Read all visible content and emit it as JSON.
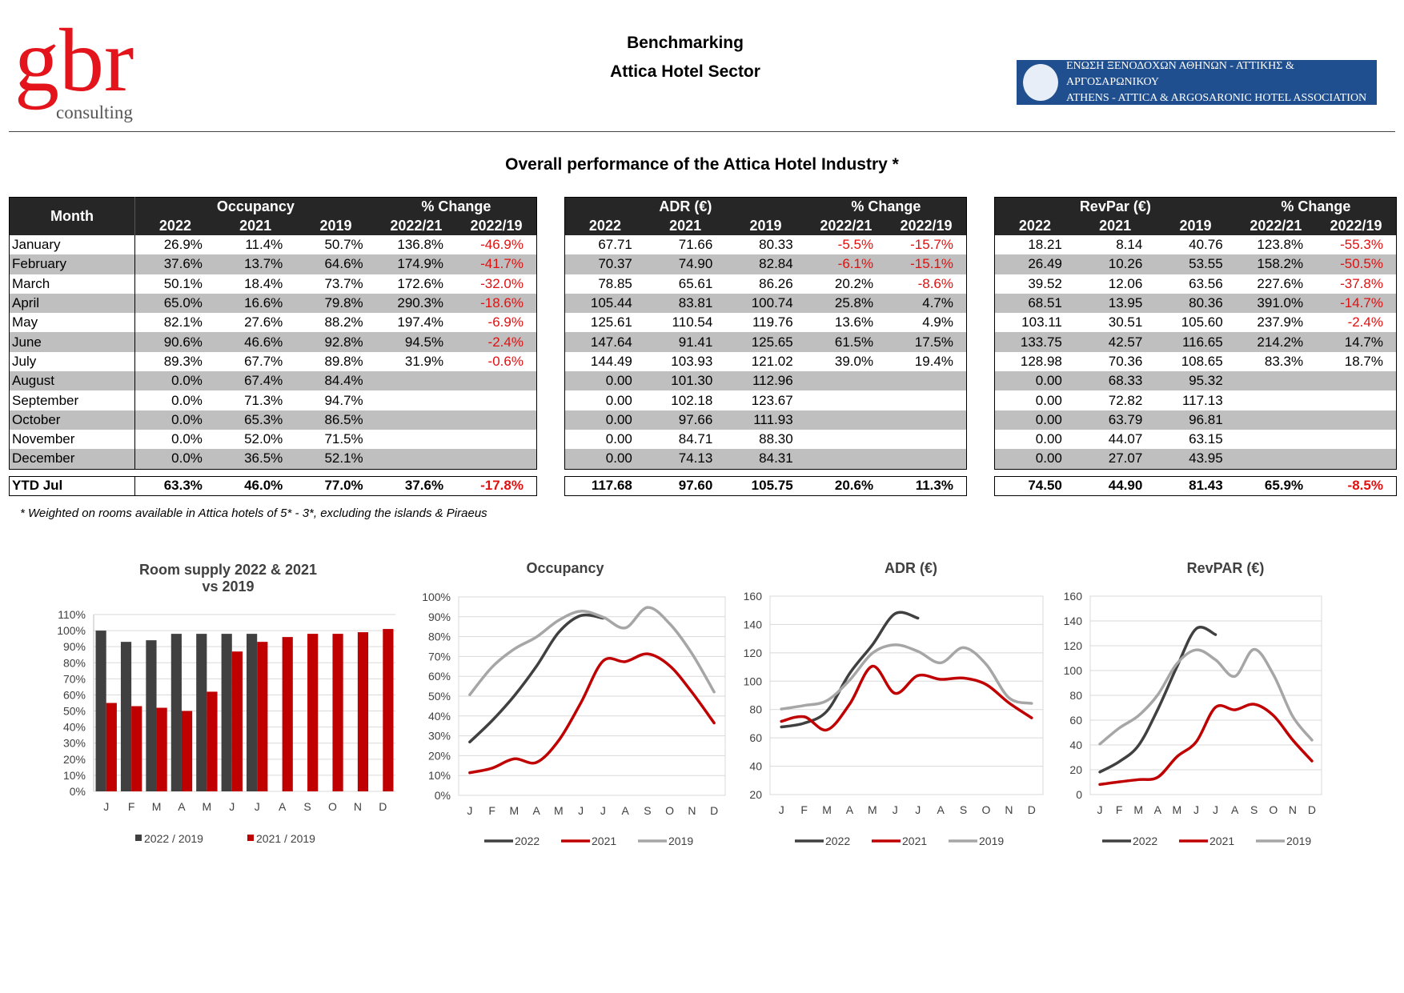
{
  "header": {
    "logo_main": "gbr",
    "logo_sub": "consulting",
    "title": "Benchmarking",
    "subtitle": "Attica Hotel Sector",
    "association": [
      "ΕΝΩΣΗ ΞΕΝΟΔΟΧΩΝ ΑΘΗΝΩΝ - ΑΤΤΙΚΗΣ & ΑΡΓΟΣΑΡΩΝΙΚΟΥ",
      "ATHENS - ATTICA & ARGOSARONIC HOTEL ASSOCIATION"
    ]
  },
  "section_title": "Overall performance of the Attica Hotel Industry *",
  "month_header": "Month",
  "months": [
    "January",
    "February",
    "March",
    "April",
    "May",
    "June",
    "July",
    "August",
    "September",
    "October",
    "November",
    "December"
  ],
  "ytd_label": "YTD Jul",
  "tables": [
    {
      "title": "Occupancy",
      "change_title": "% Change",
      "columns": [
        "2022",
        "2021",
        "2019",
        "2022/21",
        "2022/19"
      ],
      "rows": [
        [
          "26.9%",
          "11.4%",
          "50.7%",
          "136.8%",
          "-46.9%"
        ],
        [
          "37.6%",
          "13.7%",
          "64.6%",
          "174.9%",
          "-41.7%"
        ],
        [
          "50.1%",
          "18.4%",
          "73.7%",
          "172.6%",
          "-32.0%"
        ],
        [
          "65.0%",
          "16.6%",
          "79.8%",
          "290.3%",
          "-18.6%"
        ],
        [
          "82.1%",
          "27.6%",
          "88.2%",
          "197.4%",
          "-6.9%"
        ],
        [
          "90.6%",
          "46.6%",
          "92.8%",
          "94.5%",
          "-2.4%"
        ],
        [
          "89.3%",
          "67.7%",
          "89.8%",
          "31.9%",
          "-0.6%"
        ],
        [
          "0.0%",
          "67.4%",
          "84.4%"
        ],
        [
          "0.0%",
          "71.3%",
          "94.7%"
        ],
        [
          "0.0%",
          "65.3%",
          "86.5%"
        ],
        [
          "0.0%",
          "52.0%",
          "71.5%"
        ],
        [
          "0.0%",
          "36.5%",
          "52.1%"
        ]
      ],
      "ytd": [
        "63.3%",
        "46.0%",
        "77.0%",
        "37.6%",
        "-17.8%"
      ]
    },
    {
      "title": "ADR (€)",
      "change_title": "% Change",
      "columns": [
        "2022",
        "2021",
        "2019",
        "2022/21",
        "2022/19"
      ],
      "rows": [
        [
          "67.71",
          "71.66",
          "80.33",
          "-5.5%",
          "-15.7%"
        ],
        [
          "70.37",
          "74.90",
          "82.84",
          "-6.1%",
          "-15.1%"
        ],
        [
          "78.85",
          "65.61",
          "86.26",
          "20.2%",
          "-8.6%"
        ],
        [
          "105.44",
          "83.81",
          "100.74",
          "25.8%",
          "4.7%"
        ],
        [
          "125.61",
          "110.54",
          "119.76",
          "13.6%",
          "4.9%"
        ],
        [
          "147.64",
          "91.41",
          "125.65",
          "61.5%",
          "17.5%"
        ],
        [
          "144.49",
          "103.93",
          "121.02",
          "39.0%",
          "19.4%"
        ],
        [
          "0.00",
          "101.30",
          "112.96"
        ],
        [
          "0.00",
          "102.18",
          "123.67"
        ],
        [
          "0.00",
          "97.66",
          "111.93"
        ],
        [
          "0.00",
          "84.71",
          "88.30"
        ],
        [
          "0.00",
          "74.13",
          "84.31"
        ]
      ],
      "ytd": [
        "117.68",
        "97.60",
        "105.75",
        "20.6%",
        "11.3%"
      ]
    },
    {
      "title": "RevPar (€)",
      "change_title": "% Change",
      "columns": [
        "2022",
        "2021",
        "2019",
        "2022/21",
        "2022/19"
      ],
      "rows": [
        [
          "18.21",
          "8.14",
          "40.76",
          "123.8%",
          "-55.3%"
        ],
        [
          "26.49",
          "10.26",
          "53.55",
          "158.2%",
          "-50.5%"
        ],
        [
          "39.52",
          "12.06",
          "63.56",
          "227.6%",
          "-37.8%"
        ],
        [
          "68.51",
          "13.95",
          "80.36",
          "391.0%",
          "-14.7%"
        ],
        [
          "103.11",
          "30.51",
          "105.60",
          "237.9%",
          "-2.4%"
        ],
        [
          "133.75",
          "42.57",
          "116.65",
          "214.2%",
          "14.7%"
        ],
        [
          "128.98",
          "70.36",
          "108.65",
          "83.3%",
          "18.7%"
        ],
        [
          "0.00",
          "68.33",
          "95.32"
        ],
        [
          "0.00",
          "72.82",
          "117.13"
        ],
        [
          "0.00",
          "63.79",
          "96.81"
        ],
        [
          "0.00",
          "44.07",
          "63.15"
        ],
        [
          "0.00",
          "27.07",
          "43.95"
        ]
      ],
      "ytd": [
        "74.50",
        "44.90",
        "81.43",
        "65.9%",
        "-8.5%"
      ]
    }
  ],
  "footnote": "* Weighted on rooms available in Attica hotels of 5* - 3*, excluding the islands & Piraeus",
  "chart_data": [
    {
      "type": "bar",
      "title": "Room supply 2022 & 2021\nvs 2019",
      "categories": [
        "J",
        "F",
        "M",
        "A",
        "M",
        "J",
        "J",
        "A",
        "S",
        "O",
        "N",
        "D"
      ],
      "series": [
        {
          "name": "2022 / 2019",
          "color": "#404040",
          "values": [
            100,
            93,
            94,
            98,
            98,
            98,
            98,
            null,
            null,
            null,
            null,
            null
          ]
        },
        {
          "name": "2021 / 2019",
          "color": "#c00000",
          "values": [
            55,
            53,
            52,
            50,
            62,
            87,
            93,
            96,
            98,
            98,
            99,
            101
          ]
        }
      ],
      "ylim": [
        0,
        110
      ],
      "yticks": [
        {
          "value": 0,
          "label": "0%"
        },
        {
          "value": 10,
          "label": "10%"
        },
        {
          "value": 20,
          "label": "20%"
        },
        {
          "value": 30,
          "label": "30%"
        },
        {
          "value": 40,
          "label": "40%"
        },
        {
          "value": 50,
          "label": "50%"
        },
        {
          "value": 60,
          "label": "60%"
        },
        {
          "value": 70,
          "label": "70%"
        },
        {
          "value": 80,
          "label": "80%"
        },
        {
          "value": 90,
          "label": "90%"
        },
        {
          "value": 100,
          "label": "100%"
        },
        {
          "value": 110,
          "label": "110%"
        }
      ],
      "grid": true,
      "legend": "bottom"
    },
    {
      "type": "line",
      "title": "Occupancy",
      "categories": [
        "J",
        "F",
        "M",
        "A",
        "M",
        "J",
        "J",
        "A",
        "S",
        "O",
        "N",
        "D"
      ],
      "series": [
        {
          "name": "2022",
          "color": "#404040",
          "values": [
            26.9,
            37.6,
            50.1,
            65.0,
            82.1,
            90.6,
            89.3,
            null,
            null,
            null,
            null,
            null
          ]
        },
        {
          "name": "2021",
          "color": "#c00000",
          "values": [
            11.4,
            13.7,
            18.4,
            16.6,
            27.6,
            46.6,
            67.7,
            67.4,
            71.3,
            65.3,
            52.0,
            36.5
          ]
        },
        {
          "name": "2019",
          "color": "#a6a6a6",
          "values": [
            50.7,
            64.6,
            73.7,
            79.8,
            88.2,
            92.8,
            89.8,
            84.4,
            94.7,
            86.5,
            71.5,
            52.1
          ]
        }
      ],
      "ylim": [
        0,
        100
      ],
      "yticks": [
        {
          "value": 0,
          "label": "0%"
        },
        {
          "value": 10,
          "label": "10%"
        },
        {
          "value": 20,
          "label": "20%"
        },
        {
          "value": 30,
          "label": "30%"
        },
        {
          "value": 40,
          "label": "40%"
        },
        {
          "value": 50,
          "label": "50%"
        },
        {
          "value": 60,
          "label": "60%"
        },
        {
          "value": 70,
          "label": "70%"
        },
        {
          "value": 80,
          "label": "80%"
        },
        {
          "value": 90,
          "label": "90%"
        },
        {
          "value": 100,
          "label": "100%"
        }
      ],
      "grid": true,
      "legend": "bottom"
    },
    {
      "type": "line",
      "title": "ADR (€)",
      "categories": [
        "J",
        "F",
        "M",
        "A",
        "M",
        "J",
        "J",
        "A",
        "S",
        "O",
        "N",
        "D"
      ],
      "series": [
        {
          "name": "2022",
          "color": "#404040",
          "values": [
            67.71,
            70.37,
            78.85,
            105.44,
            125.61,
            147.64,
            144.49,
            null,
            null,
            null,
            null,
            null
          ]
        },
        {
          "name": "2021",
          "color": "#c00000",
          "values": [
            71.66,
            74.9,
            65.61,
            83.81,
            110.54,
            91.41,
            103.93,
            101.3,
            102.18,
            97.66,
            84.71,
            74.13
          ]
        },
        {
          "name": "2019",
          "color": "#a6a6a6",
          "values": [
            80.33,
            82.84,
            86.26,
            100.74,
            119.76,
            125.65,
            121.02,
            112.96,
            123.67,
            111.93,
            88.3,
            84.31
          ]
        }
      ],
      "ylim": [
        20,
        160
      ],
      "yticks": [
        20,
        40,
        60,
        80,
        100,
        120,
        140,
        160
      ],
      "grid": true,
      "legend": "bottom"
    },
    {
      "type": "line",
      "title": "RevPAR (€)",
      "categories": [
        "J",
        "F",
        "M",
        "A",
        "M",
        "J",
        "J",
        "A",
        "S",
        "O",
        "N",
        "D"
      ],
      "series": [
        {
          "name": "2022",
          "color": "#404040",
          "values": [
            18.21,
            26.49,
            39.52,
            68.51,
            103.11,
            133.75,
            128.98,
            null,
            null,
            null,
            null,
            null
          ]
        },
        {
          "name": "2021",
          "color": "#c00000",
          "values": [
            8.14,
            10.26,
            12.06,
            13.95,
            30.51,
            42.57,
            70.36,
            68.33,
            72.82,
            63.79,
            44.07,
            27.07
          ]
        },
        {
          "name": "2019",
          "color": "#a6a6a6",
          "values": [
            40.76,
            53.55,
            63.56,
            80.36,
            105.6,
            116.65,
            108.65,
            95.32,
            117.13,
            96.81,
            63.15,
            43.95
          ]
        }
      ],
      "ylim": [
        0,
        160
      ],
      "yticks": [
        0,
        20,
        40,
        60,
        80,
        100,
        120,
        140,
        160
      ],
      "grid": true,
      "legend": "bottom"
    }
  ]
}
